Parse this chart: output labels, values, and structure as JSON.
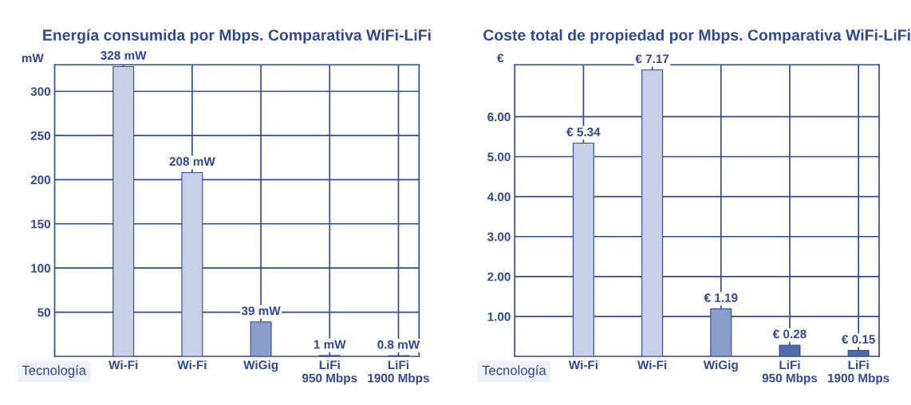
{
  "chart_data": [
    {
      "type": "bar",
      "title": "Energía consumida por Mbps. Comparativa WiFi-LiFi",
      "ylabel": "mW",
      "xlabel": "Tecnología",
      "categories": [
        "Wi-Fi",
        "Wi-Fi",
        "WiGig",
        "LiFi\n950 Mbps",
        "LiFi\n1900 Mbps"
      ],
      "values": [
        328,
        208,
        39,
        1,
        0.8
      ],
      "colors": [
        "#c7d0e6",
        "#c7d0e6",
        "#8a9dcb",
        "#8a9dcb",
        "#8a9dcb"
      ],
      "value_labels": [
        "328 mW",
        "208 mW",
        "39 mW",
        "1 mW",
        "0.8 mW"
      ],
      "ylim": [
        0,
        330
      ],
      "yticks": [
        50,
        100,
        150,
        200,
        250,
        300
      ],
      "grid": true
    },
    {
      "type": "bar",
      "title": "Coste total de propiedad por Mbps. Comparativa WiFi-LiFi",
      "ylabel": "€",
      "xlabel": "Tecnología",
      "categories": [
        "Wi-Fi",
        "Wi-Fi",
        "WiGig",
        "LiFi\n950 Mbps",
        "LiFi\n1900 Mbps"
      ],
      "values": [
        5.34,
        7.17,
        1.19,
        0.28,
        0.15
      ],
      "colors": [
        "#c7d0e6",
        "#c7d0e6",
        "#8a9dcb",
        "#4f6aa9",
        "#4f6aa9"
      ],
      "value_labels": [
        "€ 5.34",
        "€ 7.17",
        "€ 1.19",
        "€ 0.28",
        "€ 0.15"
      ],
      "ylim": [
        0,
        7.3
      ],
      "yticks": [
        {
          "value": 1,
          "label": "1.00"
        },
        {
          "value": 2,
          "label": "2.00"
        },
        {
          "value": 3,
          "label": "3.00"
        },
        {
          "value": 4,
          "label": "4.00"
        },
        {
          "value": 5,
          "label": "5.00"
        },
        {
          "value": 6,
          "label": "6.00"
        }
      ],
      "grid": true
    }
  ]
}
